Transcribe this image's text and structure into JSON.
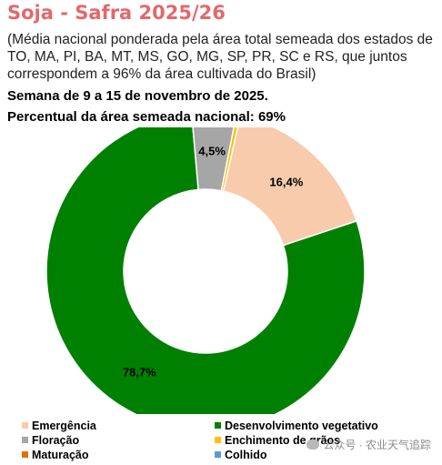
{
  "header": {
    "title": "Soja - Safra 2025/26",
    "subtitle": "(Média nacional ponderada pela área total semeada dos estados de TO, MA, PI, BA, MT, MS, GO, MG, SP, PR, SC e RS, que juntos correspondem a 96% da área cultivada do Brasil)",
    "week": "Semana de 9 a 15 de novembro de 2025.",
    "area_pct": "Percentual da área semeada nacional: 69%"
  },
  "chart_data": {
    "type": "pie",
    "donut": true,
    "series": [
      {
        "name": "Emergência",
        "value": 16.4,
        "label": "16,4%",
        "color": "#f8cbad"
      },
      {
        "name": "Desenvolvimento vegetativo",
        "value": 78.7,
        "label": "78,7%",
        "color": "#008000"
      },
      {
        "name": "Floração",
        "value": 4.5,
        "label": "4,5%",
        "color": "#a6a6a6"
      },
      {
        "name": "Enchimento de grãos",
        "value": 0.4,
        "label": "",
        "color": "#ffc000"
      },
      {
        "name": "Maturação",
        "value": 0,
        "label": "",
        "color": "#e07000"
      },
      {
        "name": "Colhido",
        "value": 0,
        "label": "",
        "color": "#5b9bd5"
      }
    ],
    "legend_position": "bottom"
  },
  "watermark": {
    "text": "公众号 · 农业天气追踪",
    "icon": "wechat-icon"
  }
}
